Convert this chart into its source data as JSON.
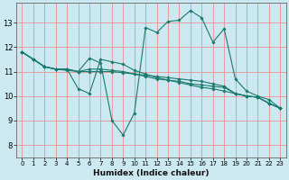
{
  "title": "",
  "xlabel": "Humidex (Indice chaleur)",
  "ylabel": "",
  "bg_color": "#cce8f0",
  "grid_color": "#f08080",
  "line_color": "#1a7a6e",
  "marker": "D",
  "markersize": 1.8,
  "linewidth": 0.8,
  "xlim": [
    -0.5,
    23.5
  ],
  "ylim": [
    7.5,
    13.8
  ],
  "yticks": [
    8,
    9,
    10,
    11,
    12,
    13
  ],
  "xticks": [
    0,
    1,
    2,
    3,
    4,
    5,
    6,
    7,
    8,
    9,
    10,
    11,
    12,
    13,
    14,
    15,
    16,
    17,
    18,
    19,
    20,
    21,
    22,
    23
  ],
  "lines": [
    [
      [
        0,
        11.8
      ],
      [
        1,
        11.5
      ],
      [
        2,
        11.2
      ],
      [
        3,
        11.1
      ],
      [
        4,
        11.1
      ],
      [
        5,
        10.3
      ],
      [
        6,
        10.1
      ],
      [
        7,
        11.5
      ],
      [
        8,
        11.4
      ],
      [
        9,
        11.3
      ],
      [
        10,
        11.05
      ],
      [
        11,
        10.9
      ],
      [
        12,
        10.75
      ],
      [
        13,
        10.65
      ],
      [
        14,
        10.55
      ],
      [
        15,
        10.45
      ],
      [
        16,
        10.35
      ],
      [
        17,
        10.3
      ],
      [
        18,
        10.2
      ],
      [
        19,
        10.1
      ],
      [
        20,
        10.0
      ],
      [
        21,
        9.95
      ],
      [
        22,
        9.7
      ],
      [
        23,
        9.5
      ]
    ],
    [
      [
        0,
        11.8
      ],
      [
        1,
        11.5
      ],
      [
        2,
        11.2
      ],
      [
        3,
        11.1
      ],
      [
        4,
        11.1
      ],
      [
        5,
        11.0
      ],
      [
        6,
        11.55
      ],
      [
        7,
        11.35
      ],
      [
        8,
        9.0
      ],
      [
        9,
        8.4
      ],
      [
        10,
        9.3
      ],
      [
        11,
        12.8
      ],
      [
        12,
        12.6
      ],
      [
        13,
        13.05
      ],
      [
        14,
        13.1
      ],
      [
        15,
        13.5
      ],
      [
        16,
        13.2
      ],
      [
        17,
        12.2
      ],
      [
        18,
        12.75
      ],
      [
        19,
        10.7
      ],
      [
        20,
        10.2
      ],
      [
        21,
        10.0
      ],
      [
        22,
        9.85
      ],
      [
        23,
        9.5
      ]
    ],
    [
      [
        0,
        11.8
      ],
      [
        1,
        11.5
      ],
      [
        2,
        11.2
      ],
      [
        3,
        11.1
      ],
      [
        4,
        11.1
      ],
      [
        5,
        11.0
      ],
      [
        6,
        11.1
      ],
      [
        7,
        11.1
      ],
      [
        8,
        11.05
      ],
      [
        9,
        11.0
      ],
      [
        10,
        10.9
      ],
      [
        11,
        10.8
      ],
      [
        12,
        10.7
      ],
      [
        13,
        10.65
      ],
      [
        14,
        10.6
      ],
      [
        15,
        10.5
      ],
      [
        16,
        10.45
      ],
      [
        17,
        10.4
      ],
      [
        18,
        10.35
      ],
      [
        19,
        10.1
      ],
      [
        20,
        10.0
      ],
      [
        21,
        9.95
      ],
      [
        22,
        9.7
      ],
      [
        23,
        9.5
      ]
    ],
    [
      [
        0,
        11.8
      ],
      [
        1,
        11.5
      ],
      [
        2,
        11.2
      ],
      [
        3,
        11.1
      ],
      [
        4,
        11.05
      ],
      [
        5,
        11.0
      ],
      [
        6,
        11.0
      ],
      [
        7,
        11.0
      ],
      [
        8,
        11.0
      ],
      [
        9,
        10.95
      ],
      [
        10,
        10.9
      ],
      [
        11,
        10.85
      ],
      [
        12,
        10.8
      ],
      [
        13,
        10.75
      ],
      [
        14,
        10.7
      ],
      [
        15,
        10.65
      ],
      [
        16,
        10.6
      ],
      [
        17,
        10.5
      ],
      [
        18,
        10.4
      ],
      [
        19,
        10.1
      ],
      [
        20,
        10.0
      ],
      [
        21,
        9.95
      ],
      [
        22,
        9.7
      ],
      [
        23,
        9.5
      ]
    ]
  ]
}
